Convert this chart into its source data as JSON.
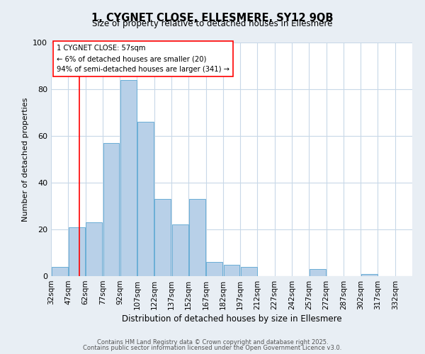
{
  "title": "1, CYGNET CLOSE, ELLESMERE, SY12 9QB",
  "subtitle": "Size of property relative to detached houses in Ellesmere",
  "xlabel": "Distribution of detached houses by size in Ellesmere",
  "ylabel": "Number of detached properties",
  "bar_values": [
    4,
    21,
    23,
    57,
    84,
    66,
    33,
    22,
    33,
    6,
    5,
    4,
    0,
    0,
    0,
    3,
    0,
    0,
    1,
    0
  ],
  "bin_labels": [
    "32sqm",
    "47sqm",
    "62sqm",
    "77sqm",
    "92sqm",
    "107sqm",
    "122sqm",
    "137sqm",
    "152sqm",
    "167sqm",
    "182sqm",
    "197sqm",
    "212sqm",
    "227sqm",
    "242sqm",
    "257sqm",
    "272sqm",
    "287sqm",
    "302sqm",
    "317sqm",
    "332sqm"
  ],
  "bin_edges": [
    32,
    47,
    62,
    77,
    92,
    107,
    122,
    137,
    152,
    167,
    182,
    197,
    212,
    227,
    242,
    257,
    272,
    287,
    302,
    317,
    332
  ],
  "bar_color": "#b8d0e8",
  "bar_edge_color": "#6aaed6",
  "vline_x": 57,
  "vline_color": "red",
  "annotation_title": "1 CYGNET CLOSE: 57sqm",
  "annotation_line1": "← 6% of detached houses are smaller (20)",
  "annotation_line2": "94% of semi-detached houses are larger (341) →",
  "ylim": [
    0,
    100
  ],
  "yticks": [
    0,
    20,
    40,
    60,
    80,
    100
  ],
  "footnote1": "Contains HM Land Registry data © Crown copyright and database right 2025.",
  "footnote2": "Contains public sector information licensed under the Open Government Licence v3.0.",
  "bg_color": "#e8eef4",
  "plot_bg_color": "#ffffff",
  "grid_color": "#c8d8e8"
}
